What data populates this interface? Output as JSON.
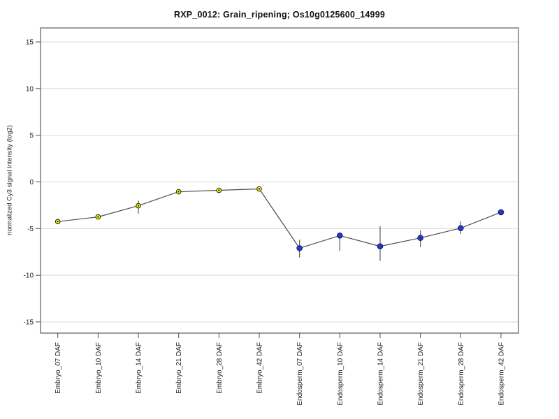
{
  "title": "RXP_0012: Grain_ripening; Os10g0125600_14999",
  "chart_data": {
    "type": "line",
    "title": "RXP_0012: Grain_ripening; Os10g0125600_14999",
    "xlabel": "",
    "ylabel": "normalized Cy3 signal intensity (log2)",
    "ylim": [
      -16.2,
      16.5
    ],
    "yticks": [
      15,
      10,
      5,
      0,
      -5,
      -10,
      -15
    ],
    "grid": true,
    "legend_position": "none",
    "categories": [
      "Embryo_07 DAF",
      "Embryo_10 DAF",
      "Embryo_14 DAF",
      "Embryo_21 DAF",
      "Embryo_28 DAF",
      "Embryo_42 DAF",
      "Endosperm_07 DAF",
      "Endosperm_10 DAF",
      "Endosperm_14 DAF",
      "Endosperm_21 DAF",
      "Endosperm_28 DAF",
      "Endosperm_42 DAF"
    ],
    "series": [
      {
        "name": "normalized Cy3 signal intensity",
        "values": [
          -4.25,
          -3.75,
          -2.55,
          -1.05,
          -0.9,
          -0.75,
          -7.1,
          -5.75,
          -6.9,
          -6.0,
          -4.95,
          -3.25
        ],
        "error_high": [
          null,
          null,
          -2.0,
          null,
          null,
          null,
          -6.2,
          -5.4,
          -4.75,
          -5.2,
          -4.2,
          null
        ],
        "error_low": [
          null,
          null,
          -3.4,
          null,
          null,
          null,
          -8.1,
          -7.4,
          -8.45,
          -7.0,
          -5.6,
          null
        ]
      }
    ],
    "point_groups": [
      "embryo",
      "embryo",
      "embryo",
      "embryo",
      "embryo",
      "embryo",
      "endosperm",
      "endosperm",
      "endosperm",
      "endosperm",
      "endosperm",
      "endosperm"
    ]
  },
  "colors": {
    "embryo_marker_fill": "#ffff00",
    "embryo_marker_stroke": "#1a1a1a",
    "endosperm_marker_fill": "#2636c4",
    "endosperm_marker_stroke": "#101a66",
    "line": "#4d4d4d",
    "error_bar": "#4d4d4d",
    "grid": "#d9d9d9",
    "axis": "#4d4d4d",
    "tick_label": "#222222"
  }
}
